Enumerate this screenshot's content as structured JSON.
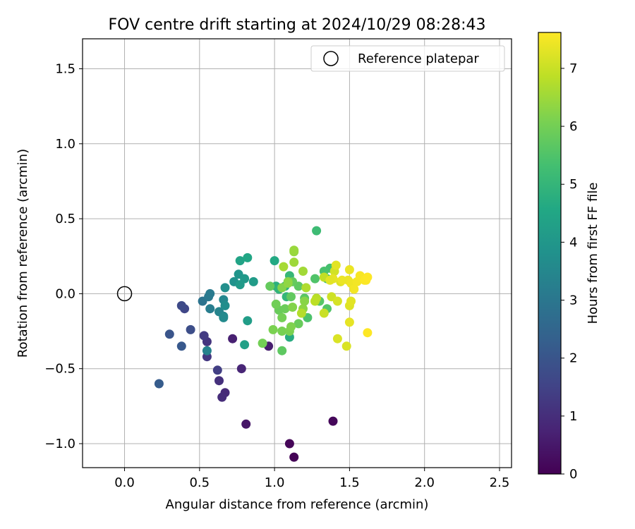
{
  "chart_data": {
    "type": "scatter",
    "title": "FOV centre drift starting at 2024/10/29 08:28:43",
    "xlabel": "Angular distance from reference (arcmin)",
    "ylabel": "Rotation from reference (arcmin)",
    "xlim": [
      -0.28,
      2.58
    ],
    "ylim": [
      -1.16,
      1.7
    ],
    "xticks": [
      0.0,
      0.5,
      1.0,
      1.5,
      2.0,
      2.5
    ],
    "xtick_labels": [
      "0.0",
      "0.5",
      "1.0",
      "1.5",
      "2.0",
      "2.5"
    ],
    "yticks": [
      -1.0,
      -0.5,
      0.0,
      0.5,
      1.0,
      1.5
    ],
    "ytick_labels": [
      "−1.0",
      "−0.5",
      "0.0",
      "0.5",
      "1.0",
      "1.5"
    ],
    "grid": true,
    "legend": {
      "position": "upper-right",
      "entries": [
        {
          "label": "Reference platepar",
          "marker": "open-circle",
          "color": "#000000"
        }
      ]
    },
    "reference_point": {
      "x": 0.0,
      "y": 0.0
    },
    "colorbar": {
      "label": "Hours from first FF file",
      "colormap": "viridis",
      "range": [
        0,
        7.62
      ],
      "ticks": [
        0,
        1,
        2,
        3,
        4,
        5,
        6,
        7
      ],
      "tick_labels": [
        "0",
        "1",
        "2",
        "3",
        "4",
        "5",
        "6",
        "7"
      ]
    },
    "series": [
      {
        "columns": [
          "x",
          "y",
          "hours"
        ],
        "points": [
          [
            1.13,
            -1.09,
            0.05
          ],
          [
            1.1,
            -1.0,
            0.1
          ],
          [
            1.39,
            -0.85,
            0.15
          ],
          [
            0.81,
            -0.87,
            0.45
          ],
          [
            0.96,
            -0.35,
            0.6
          ],
          [
            0.72,
            -0.3,
            0.7
          ],
          [
            0.78,
            -0.5,
            0.8
          ],
          [
            0.67,
            -0.66,
            0.9
          ],
          [
            0.65,
            -0.69,
            0.95
          ],
          [
            0.63,
            -0.58,
            1.05
          ],
          [
            0.55,
            -0.32,
            1.15
          ],
          [
            0.55,
            -0.42,
            1.25
          ],
          [
            0.53,
            -0.28,
            1.3
          ],
          [
            0.62,
            -0.51,
            1.4
          ],
          [
            0.4,
            -0.1,
            1.6
          ],
          [
            0.38,
            -0.08,
            1.7
          ],
          [
            0.44,
            -0.24,
            1.8
          ],
          [
            0.3,
            -0.27,
            2.0
          ],
          [
            0.38,
            -0.35,
            2.1
          ],
          [
            0.23,
            -0.6,
            2.2
          ],
          [
            0.52,
            -0.05,
            2.9
          ],
          [
            0.56,
            -0.02,
            3.05
          ],
          [
            0.57,
            0.0,
            3.1
          ],
          [
            0.57,
            -0.1,
            3.2
          ],
          [
            0.55,
            -0.38,
            3.35
          ],
          [
            0.63,
            -0.12,
            3.4
          ],
          [
            0.66,
            -0.04,
            3.5
          ],
          [
            0.66,
            -0.15,
            3.55
          ],
          [
            0.66,
            -0.16,
            3.6
          ],
          [
            0.67,
            -0.08,
            3.7
          ],
          [
            0.67,
            0.04,
            3.75
          ],
          [
            0.73,
            0.08,
            3.85
          ],
          [
            0.76,
            0.13,
            3.95
          ],
          [
            0.8,
            0.1,
            4.05
          ],
          [
            0.77,
            0.06,
            4.1
          ],
          [
            0.86,
            0.08,
            4.15
          ],
          [
            0.82,
            -0.18,
            4.2
          ],
          [
            0.8,
            -0.34,
            4.3
          ],
          [
            0.77,
            0.22,
            4.4
          ],
          [
            0.82,
            0.24,
            4.5
          ],
          [
            1.0,
            0.22,
            4.6
          ],
          [
            1.1,
            -0.29,
            4.7
          ],
          [
            1.01,
            0.05,
            4.8
          ],
          [
            1.07,
            0.05,
            4.9
          ],
          [
            1.03,
            0.03,
            4.95
          ],
          [
            1.08,
            -0.02,
            5.0
          ],
          [
            1.1,
            0.12,
            5.05
          ],
          [
            1.28,
            0.42,
            5.2
          ],
          [
            1.35,
            0.1,
            5.3
          ],
          [
            1.37,
            0.17,
            5.35
          ],
          [
            1.33,
            0.15,
            5.4
          ],
          [
            1.22,
            -0.16,
            5.45
          ],
          [
            1.27,
            0.1,
            5.5
          ],
          [
            1.35,
            -0.1,
            5.55
          ],
          [
            1.3,
            -0.05,
            5.6
          ],
          [
            1.2,
            -0.03,
            5.65
          ],
          [
            1.16,
            0.05,
            5.7
          ],
          [
            1.11,
            -0.02,
            5.75
          ],
          [
            1.12,
            0.08,
            5.8
          ],
          [
            1.16,
            -0.2,
            5.85
          ],
          [
            1.05,
            -0.38,
            5.7
          ],
          [
            0.97,
            0.05,
            5.8
          ],
          [
            1.03,
            -0.11,
            5.85
          ],
          [
            1.07,
            -0.1,
            5.9
          ],
          [
            1.01,
            -0.07,
            5.95
          ],
          [
            1.05,
            -0.16,
            6.0
          ],
          [
            1.05,
            -0.25,
            6.05
          ],
          [
            0.99,
            -0.24,
            6.1
          ],
          [
            1.1,
            -0.25,
            6.1
          ],
          [
            1.11,
            -0.22,
            6.15
          ],
          [
            1.12,
            -0.09,
            6.2
          ],
          [
            1.2,
            -0.05,
            6.25
          ],
          [
            1.19,
            -0.1,
            6.3
          ],
          [
            0.92,
            -0.33,
            6.0
          ],
          [
            1.05,
            0.04,
            6.2
          ],
          [
            1.09,
            0.08,
            6.25
          ],
          [
            1.09,
            0.07,
            6.35
          ],
          [
            1.13,
            0.28,
            6.4
          ],
          [
            1.13,
            0.29,
            6.45
          ],
          [
            1.13,
            0.21,
            6.5
          ],
          [
            1.19,
            0.15,
            6.55
          ],
          [
            1.06,
            0.18,
            6.6
          ],
          [
            1.21,
            0.04,
            6.7
          ],
          [
            1.18,
            -0.13,
            6.75
          ],
          [
            1.28,
            -0.03,
            6.8
          ],
          [
            1.27,
            -0.05,
            6.85
          ],
          [
            1.33,
            0.11,
            6.9
          ],
          [
            1.33,
            -0.13,
            7.0
          ],
          [
            1.38,
            -0.02,
            7.05
          ],
          [
            1.4,
            0.15,
            7.1
          ],
          [
            1.42,
            -0.05,
            7.15
          ],
          [
            1.42,
            -0.3,
            7.2
          ],
          [
            1.44,
            0.08,
            7.25
          ],
          [
            1.41,
            0.19,
            7.3
          ],
          [
            1.48,
            -0.35,
            7.2
          ],
          [
            1.5,
            -0.08,
            7.25
          ],
          [
            1.51,
            -0.05,
            7.3
          ],
          [
            1.5,
            -0.19,
            7.35
          ],
          [
            1.49,
            0.09,
            7.4
          ],
          [
            1.5,
            0.16,
            7.4
          ],
          [
            1.51,
            0.07,
            7.45
          ],
          [
            1.53,
            0.03,
            7.5
          ],
          [
            1.55,
            0.08,
            7.5
          ],
          [
            1.57,
            0.12,
            7.55
          ],
          [
            1.59,
            0.1,
            7.55
          ],
          [
            1.6,
            0.09,
            7.6
          ],
          [
            1.61,
            0.09,
            7.6
          ],
          [
            1.62,
            0.11,
            7.62
          ],
          [
            1.62,
            -0.26,
            7.62
          ],
          [
            1.45,
            0.09,
            7.4
          ],
          [
            1.39,
            0.1,
            7.35
          ],
          [
            1.37,
            0.09,
            7.3
          ]
        ]
      }
    ]
  }
}
